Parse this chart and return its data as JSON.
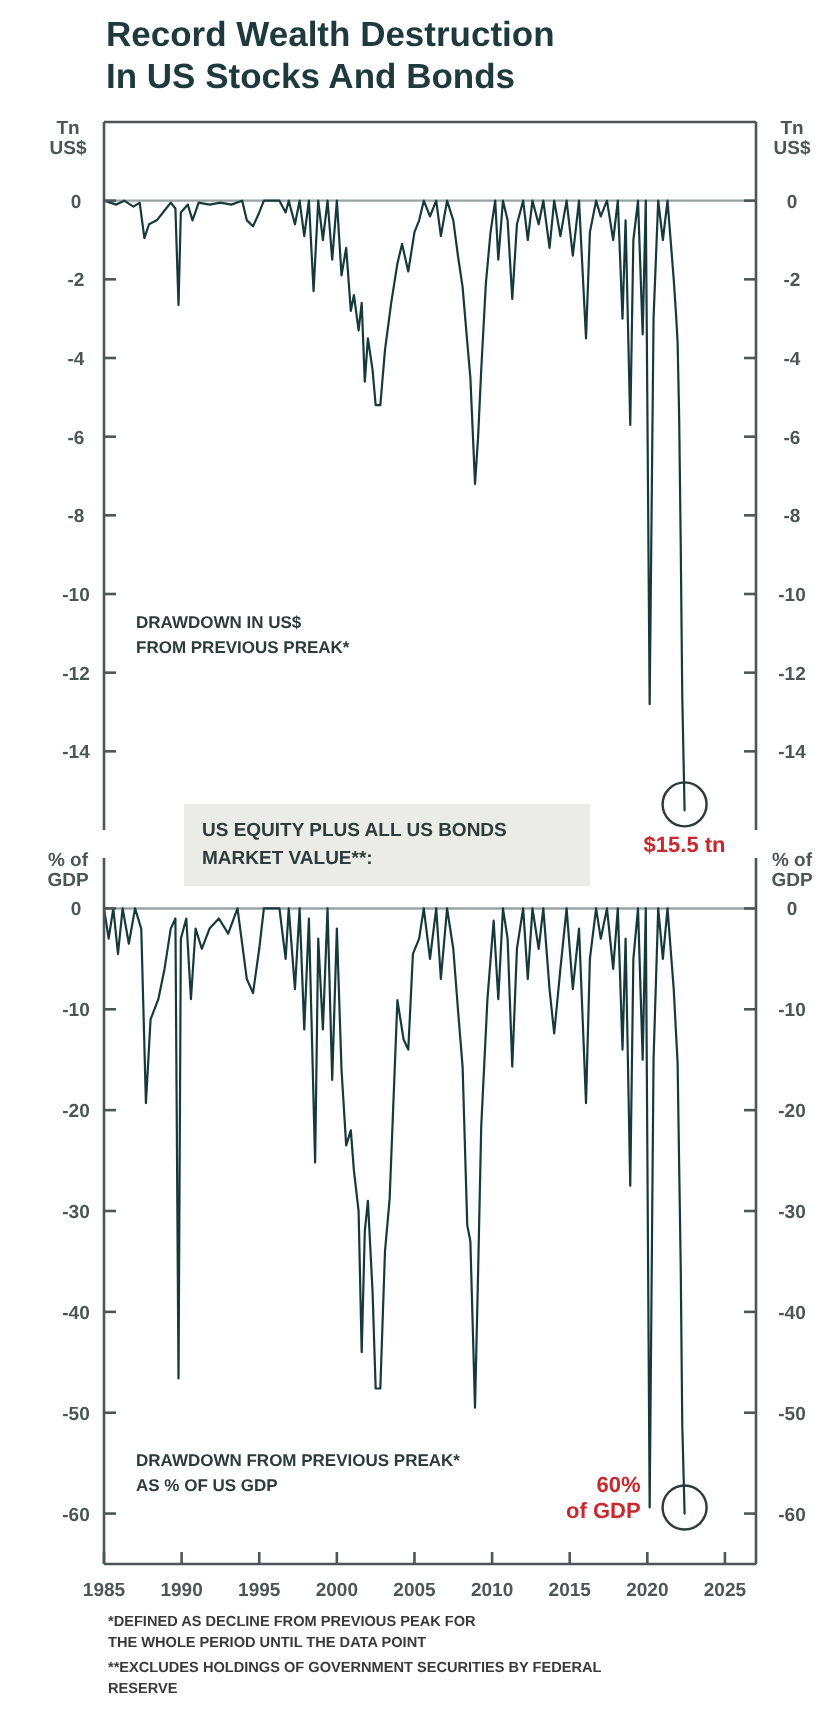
{
  "chart_data": [
    {
      "type": "line",
      "title": "Record Wealth Destruction\nIn US Stocks And Bonds",
      "subtitle": "US EQUITY PLUS ALL US BONDS\nMARKET VALUE**:",
      "ylabel": "Tn\nUS$",
      "y2label": "Tn\nUS$",
      "annotations": [
        "DRAWDOWN IN US$\nFROM PREVIOUS PREAK*",
        {
          "text": "$15.5 tn",
          "x": 2022.4,
          "y": -15.5
        }
      ],
      "x": [
        1985.0,
        1985.8,
        1986.3,
        1986.9,
        1987.3,
        1987.6,
        1987.9,
        1988.4,
        1988.9,
        1989.3,
        1989.6,
        1989.8,
        1989.95,
        1990.4,
        1990.7,
        1991.1,
        1991.8,
        1992.5,
        1993.2,
        1993.9,
        1994.2,
        1994.6,
        1995.0,
        1995.3,
        1996.3,
        1996.7,
        1996.9,
        1997.3,
        1997.6,
        1997.9,
        1998.2,
        1998.5,
        1998.8,
        1999.1,
        1999.4,
        1999.7,
        2000.0,
        2000.3,
        2000.6,
        2000.9,
        2001.1,
        2001.4,
        2001.6,
        2001.8,
        2002.0,
        2002.3,
        2002.5,
        2002.8,
        2003.1,
        2003.5,
        2003.9,
        2004.2,
        2004.6,
        2005.0,
        2005.3,
        2005.6,
        2006.0,
        2006.4,
        2006.7,
        2007.1,
        2007.5,
        2007.8,
        2008.1,
        2008.4,
        2008.6,
        2008.9,
        2009.1,
        2009.3,
        2009.6,
        2009.9,
        2010.2,
        2010.4,
        2010.7,
        2011.0,
        2011.3,
        2011.6,
        2012.0,
        2012.3,
        2012.6,
        2013.0,
        2013.3,
        2013.7,
        2014.0,
        2014.4,
        2014.8,
        2015.2,
        2015.6,
        2016.05,
        2016.3,
        2016.7,
        2017.0,
        2017.4,
        2017.8,
        2018.1,
        2018.4,
        2018.6,
        2018.9,
        2019.1,
        2019.4,
        2019.7,
        2019.9,
        2020.15,
        2020.4,
        2020.7,
        2021.0,
        2021.3,
        2021.7,
        2021.85,
        2021.95,
        2022.05,
        2022.15,
        2022.25,
        2022.4
      ],
      "series": [
        {
          "color": "#163a3c",
          "values": [
            0,
            -0.1,
            0,
            -0.15,
            -0.05,
            -0.95,
            -0.6,
            -0.5,
            -0.25,
            -0.05,
            -0.2,
            -2.65,
            -0.3,
            -0.1,
            -0.5,
            -0.05,
            -0.1,
            -0.05,
            -0.1,
            0,
            -0.5,
            -0.65,
            -0.3,
            0,
            0,
            -0.3,
            0,
            -0.6,
            0,
            -0.9,
            0,
            -2.3,
            0,
            -1.0,
            0,
            -1.5,
            0,
            -1.9,
            -1.2,
            -2.8,
            -2.4,
            -3.3,
            -2.6,
            -4.6,
            -3.5,
            -4.3,
            -5.2,
            -5.2,
            -3.8,
            -2.6,
            -1.6,
            -1.1,
            -1.8,
            -0.8,
            -0.5,
            0,
            -0.4,
            0,
            -0.9,
            0,
            -0.5,
            -1.4,
            -2.2,
            -3.6,
            -4.5,
            -7.2,
            -6.0,
            -4.3,
            -2.1,
            -0.8,
            0,
            -1.5,
            0,
            -0.5,
            -2.5,
            -0.6,
            0,
            -1.0,
            0,
            -0.6,
            0,
            -1.2,
            0,
            -0.9,
            0,
            -1.4,
            0,
            -3.5,
            -0.8,
            0,
            -0.4,
            0,
            -1.0,
            0,
            -3.0,
            -0.5,
            -5.7,
            -1.0,
            0,
            -3.4,
            0,
            -12.8,
            -3.0,
            0,
            -1.0,
            0,
            -2.0,
            -2.9,
            -3.6,
            -5.5,
            -8.7,
            -12.6,
            -15.5
          ]
        }
      ],
      "xlim": [
        1985,
        2027
      ],
      "ylim": [
        -16,
        2
      ],
      "yticks": [
        0,
        -2,
        -4,
        -6,
        -8,
        -10,
        -12,
        -14
      ],
      "y2lim": [
        -16,
        2
      ],
      "y2ticks": [
        0,
        -2,
        -4,
        -6,
        -8,
        -10,
        -12,
        -14
      ],
      "tick_labels": "y",
      "ref_lines": [
        {
          "axis": "y",
          "value": 0,
          "color": "#9aa3a3"
        }
      ]
    },
    {
      "type": "line",
      "ylabel": "% of\nGDP",
      "y2label": "% of\nGDP",
      "annotations": [
        "DRAWDOWN FROM PREVIOUS PREAK*\nAS % OF US GDP",
        {
          "text": "60%\nof GDP",
          "x": 2022.4,
          "y": -60
        },
        "*DEFINED AS DECLINE FROM PREVIOUS PEAK FOR\nTHE WHOLE PERIOD UNTIL THE DATA POINT",
        "**EXCLUDES HOLDINGS OF GOVERNMENT SECURITIES BY FEDERAL\nRESERVE"
      ],
      "x": [
        1985.0,
        1985.3,
        1985.6,
        1985.9,
        1986.2,
        1986.6,
        1987.0,
        1987.4,
        1987.7,
        1988.0,
        1988.5,
        1988.9,
        1989.3,
        1989.6,
        1989.8,
        1989.95,
        1990.3,
        1990.6,
        1990.9,
        1991.3,
        1991.8,
        1992.4,
        1993.0,
        1993.6,
        1994.2,
        1994.6,
        1995.0,
        1995.3,
        1996.3,
        1996.7,
        1996.9,
        1997.3,
        1997.6,
        1997.9,
        1998.2,
        1998.6,
        1998.8,
        1999.1,
        1999.4,
        1999.7,
        2000.0,
        2000.3,
        2000.6,
        2000.9,
        2001.1,
        2001.4,
        2001.6,
        2001.8,
        2002.0,
        2002.3,
        2002.5,
        2002.8,
        2003.1,
        2003.4,
        2003.9,
        2004.3,
        2004.6,
        2004.9,
        2005.3,
        2005.6,
        2006.0,
        2006.4,
        2006.7,
        2007.1,
        2007.5,
        2007.8,
        2008.1,
        2008.4,
        2008.6,
        2008.9,
        2009.1,
        2009.3,
        2009.7,
        2010.1,
        2010.4,
        2010.7,
        2011.0,
        2011.3,
        2011.6,
        2012.0,
        2012.3,
        2012.6,
        2013.0,
        2013.3,
        2013.7,
        2014.0,
        2014.4,
        2014.8,
        2015.2,
        2015.6,
        2016.05,
        2016.3,
        2016.7,
        2017.0,
        2017.4,
        2017.8,
        2018.1,
        2018.4,
        2018.6,
        2018.9,
        2019.1,
        2019.4,
        2019.7,
        2019.9,
        2020.15,
        2020.4,
        2020.7,
        2021.0,
        2021.3,
        2021.7,
        2021.85,
        2021.95,
        2022.05,
        2022.15,
        2022.25,
        2022.4
      ],
      "series": [
        {
          "color": "#163a3c",
          "values": [
            0,
            -3,
            0,
            -4.5,
            0,
            -3.5,
            0,
            -2,
            -19.3,
            -11,
            -9,
            -6,
            -2,
            -1,
            -46.6,
            -3,
            -1,
            -9,
            -2,
            -4,
            -2,
            -1,
            -2.5,
            0,
            -7,
            -8.4,
            -4,
            0,
            0,
            -5,
            0,
            -8,
            0,
            -12,
            -1,
            -25.2,
            -3,
            -12,
            0,
            -17,
            -2,
            -16,
            -23.5,
            -22,
            -26,
            -30,
            -44,
            -32,
            -29,
            -38,
            -47.6,
            -47.6,
            -34,
            -28.8,
            -9.1,
            -13,
            -14,
            -4.5,
            -3,
            0,
            -5,
            0,
            -7,
            0,
            -4,
            -10,
            -15.7,
            -31.4,
            -33,
            -49.5,
            -36,
            -21.6,
            -9,
            -1.2,
            -9,
            0,
            -3,
            -15.7,
            -4,
            0,
            -7,
            0,
            -4,
            0,
            -8,
            -12.4,
            -6,
            0,
            -8,
            -2,
            -19.3,
            -5,
            0,
            -3,
            0,
            -6,
            0,
            -14,
            -3,
            -27.5,
            -5,
            0,
            -15,
            0,
            -59.4,
            -15,
            0,
            -5,
            0,
            -8,
            -12.4,
            -15.3,
            -25.5,
            -35.4,
            -51.2,
            -60
          ]
        }
      ],
      "xlim": [
        1985,
        2027
      ],
      "xticks": [
        1985,
        1990,
        1995,
        2000,
        2005,
        2010,
        2015,
        2020,
        2025
      ],
      "ylim": [
        -65,
        5
      ],
      "yticks": [
        0,
        -10,
        -20,
        -30,
        -40,
        -50,
        -60
      ],
      "y2lim": [
        -65,
        5
      ],
      "y2ticks": [
        0,
        -10,
        -20,
        -30,
        -40,
        -50,
        -60
      ],
      "ref_lines": [
        {
          "axis": "y",
          "value": 0,
          "color": "#9aa3a3"
        }
      ]
    }
  ]
}
